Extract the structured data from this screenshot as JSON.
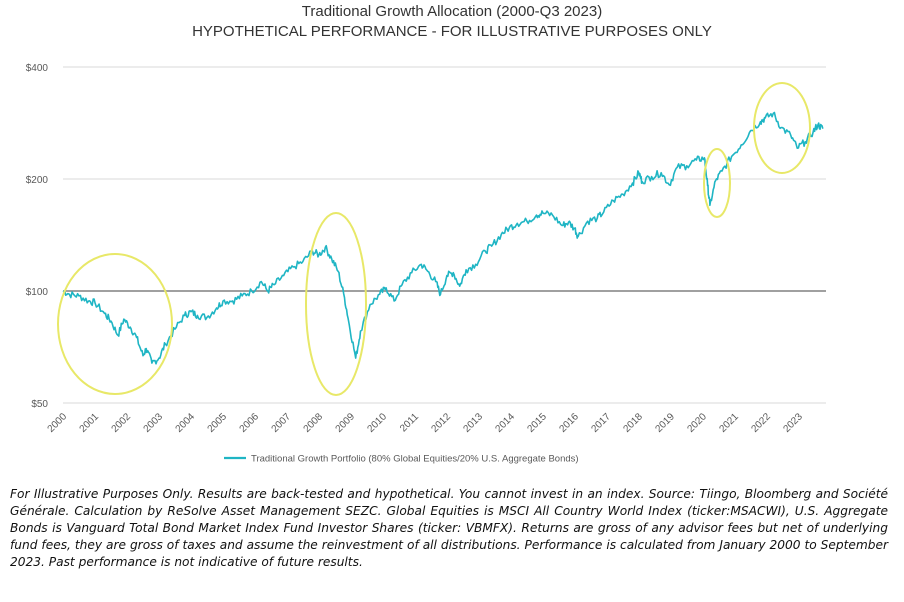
{
  "chart_data": {
    "type": "line",
    "title": "Traditional Growth Allocation (2000-Q3 2023)",
    "subtitle": "HYPOTHETICAL PERFORMANCE - FOR ILLUSTRATIVE PURPOSES ONLY",
    "xlabel": "",
    "ylabel": "",
    "scale_y": "log",
    "ylim": [
      50,
      400
    ],
    "xlim": [
      2000,
      2023.85
    ],
    "y_ticks": [
      {
        "value": 50,
        "label": "$50"
      },
      {
        "value": 100,
        "label": "$100"
      },
      {
        "value": 200,
        "label": "$200"
      },
      {
        "value": 400,
        "label": "$400"
      }
    ],
    "x_ticks": [
      "2000",
      "2001",
      "2002",
      "2003",
      "2004",
      "2005",
      "2006",
      "2007",
      "2008",
      "2009",
      "2010",
      "2011",
      "2012",
      "2013",
      "2014",
      "2015",
      "2016",
      "2017",
      "2018",
      "2019",
      "2020",
      "2021",
      "2022",
      "2023"
    ],
    "reference_line": 100,
    "grid": "horizontal",
    "legend_position": "bottom",
    "series": [
      {
        "name": "Traditional Growth Portfolio (80% Global Equities/20% U.S. Aggregate Bonds)",
        "color": "#1FB5C4",
        "x": [
          2000.0,
          2000.2,
          2000.5,
          2000.8,
          2001.0,
          2001.3,
          2001.5,
          2001.72,
          2001.9,
          2002.1,
          2002.3,
          2002.5,
          2002.6,
          2002.78,
          2003.0,
          2003.2,
          2003.5,
          2003.8,
          2004.0,
          2004.2,
          2004.5,
          2004.8,
          2005.0,
          2005.3,
          2005.6,
          2005.9,
          2006.2,
          2006.4,
          2006.6,
          2006.9,
          2007.2,
          2007.5,
          2007.8,
          2008.0,
          2008.2,
          2008.4,
          2008.6,
          2008.8,
          2008.95,
          2009.15,
          2009.3,
          2009.6,
          2009.9,
          2010.1,
          2010.35,
          2010.6,
          2010.9,
          2011.2,
          2011.4,
          2011.65,
          2011.8,
          2012.0,
          2012.2,
          2012.4,
          2012.6,
          2012.9,
          2013.2,
          2013.4,
          2013.7,
          2013.95,
          2014.2,
          2014.5,
          2014.8,
          2015.0,
          2015.3,
          2015.6,
          2015.8,
          2016.0,
          2016.1,
          2016.4,
          2016.7,
          2016.9,
          2017.2,
          2017.5,
          2017.8,
          2018.0,
          2018.1,
          2018.4,
          2018.7,
          2018.95,
          2019.2,
          2019.5,
          2019.8,
          2020.05,
          2020.15,
          2020.22,
          2020.4,
          2020.6,
          2020.9,
          2021.2,
          2021.5,
          2021.8,
          2021.95,
          2022.2,
          2022.45,
          2022.75,
          2022.95,
          2023.2,
          2023.45,
          2023.6,
          2023.75
        ],
        "values": [
          100,
          98,
          97,
          94,
          93,
          87,
          83,
          76,
          84,
          80,
          75,
          67,
          70,
          64,
          66,
          72,
          79,
          86,
          88,
          86,
          85,
          90,
          94,
          94,
          97,
          100,
          106,
          100,
          104,
          110,
          116,
          120,
          128,
          125,
          131,
          122,
          113,
          96,
          81,
          66,
          78,
          92,
          98,
          102,
          94,
          104,
          112,
          118,
          113,
          106,
          98,
          110,
          112,
          103,
          114,
          118,
          128,
          132,
          142,
          148,
          152,
          154,
          160,
          162,
          160,
          150,
          153,
          147,
          140,
          154,
          157,
          163,
          175,
          182,
          195,
          208,
          197,
          203,
          208,
          193,
          215,
          217,
          225,
          228,
          192,
          170,
          198,
          210,
          230,
          247,
          270,
          285,
          292,
          300,
          275,
          262,
          242,
          252,
          268,
          280,
          273
        ]
      }
    ],
    "annotations": [
      {
        "type": "ellipse",
        "color": "#E8E868",
        "note": "2000-2002 drawdown"
      },
      {
        "type": "ellipse",
        "color": "#E8E868",
        "note": "2008 drawdown"
      },
      {
        "type": "ellipse",
        "color": "#E8E868",
        "note": "2020 drawdown"
      },
      {
        "type": "ellipse",
        "color": "#E8E868",
        "note": "2022 drawdown"
      }
    ]
  },
  "footnote": "For Illustrative Purposes Only. Results are back-tested and hypothetical. You cannot invest in an index. Source: Tiingo, Bloomberg and Société Générale. Calculation by ReSolve Asset Management SEZC. Global Equities is MSCI All Country World Index (ticker:MSACWI), U.S. Aggregate Bonds is Vanguard Total Bond Market Index Fund Investor Shares (ticker: VBMFX). Returns are gross of any advisor fees but net of underlying fund fees, they are gross of taxes and assume the reinvestment of all distributions. Performance is calculated from January 2000 to September 2023. Past performance is not indicative of future results.",
  "colors": {
    "line": "#1FB5C4",
    "grid": "#D9D9D9",
    "reference": "#808080",
    "highlight": "#E8E868",
    "text": "#595959"
  }
}
